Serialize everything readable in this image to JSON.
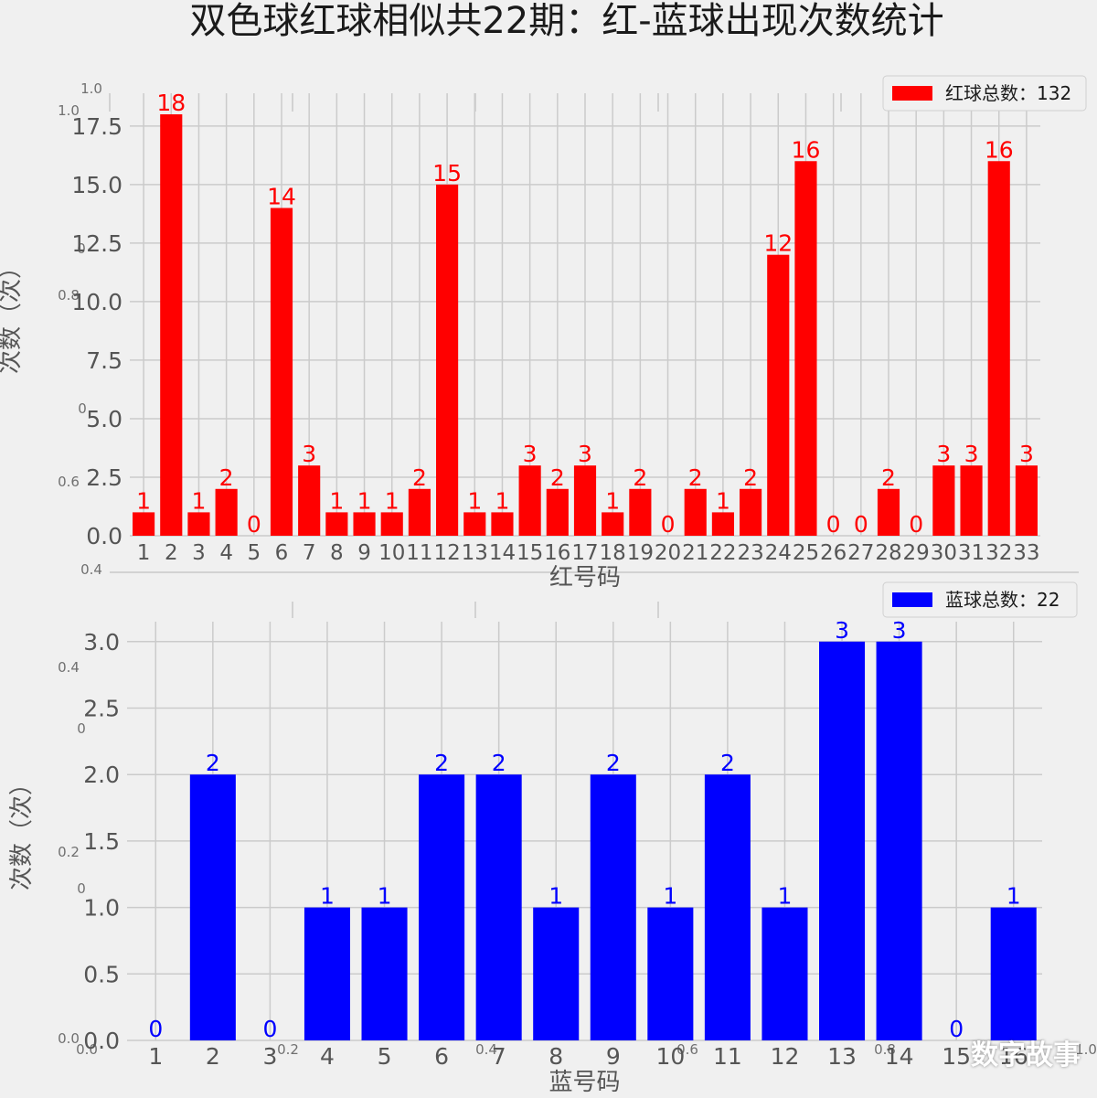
{
  "title": "双色球红球相似共22期：红-蓝球出现次数统计",
  "watermark": "数字故事",
  "colors": {
    "red": "#ff0000",
    "blue": "#0000ff",
    "grid": "#cbcbcb",
    "background": "#f0f0f0",
    "tick_text": "#555555"
  },
  "ghost_ticks": [
    "1.0",
    "1.0",
    "0",
    "0.8",
    "0",
    "0.6",
    "0.4",
    "0.4",
    "0",
    "0.2",
    "0",
    "0.0",
    "0.0",
    "0.2",
    "0.4",
    "0.6",
    "0.8",
    "1.0"
  ],
  "chart_data": [
    {
      "type": "bar",
      "title": "",
      "xlabel": "红号码",
      "ylabel": "次数（次）",
      "categories": [
        "1",
        "2",
        "3",
        "4",
        "5",
        "6",
        "7",
        "8",
        "9",
        "10",
        "11",
        "12",
        "13",
        "14",
        "15",
        "16",
        "17",
        "18",
        "19",
        "20",
        "21",
        "22",
        "23",
        "24",
        "25",
        "26",
        "27",
        "28",
        "29",
        "30",
        "31",
        "32",
        "33"
      ],
      "series": [
        {
          "name": "红球总数：132",
          "color": "#ff0000",
          "values": [
            1,
            18,
            1,
            2,
            0,
            14,
            3,
            1,
            1,
            1,
            2,
            15,
            1,
            1,
            3,
            2,
            3,
            1,
            2,
            0,
            2,
            1,
            2,
            12,
            16,
            0,
            0,
            2,
            0,
            3,
            3,
            16,
            3
          ]
        }
      ],
      "yticks": [
        "0.0",
        "2.5",
        "5.0",
        "7.5",
        "10.0",
        "12.5",
        "15.0",
        "17.5"
      ],
      "ylim": [
        0,
        18.9
      ],
      "grid": true,
      "legend": "top-right"
    },
    {
      "type": "bar",
      "title": "",
      "xlabel": "蓝号码",
      "ylabel": "次数（次）",
      "categories": [
        "1",
        "2",
        "3",
        "4",
        "5",
        "6",
        "7",
        "8",
        "9",
        "10",
        "11",
        "12",
        "13",
        "14",
        "15",
        "16"
      ],
      "series": [
        {
          "name": "蓝球总数：22",
          "color": "#0000ff",
          "values": [
            0,
            2,
            0,
            1,
            1,
            2,
            2,
            1,
            2,
            1,
            2,
            1,
            3,
            3,
            0,
            1
          ]
        }
      ],
      "yticks": [
        "0.0",
        "0.5",
        "1.0",
        "1.5",
        "2.0",
        "2.5",
        "3.0"
      ],
      "ylim": [
        0,
        3.15
      ],
      "grid": true,
      "legend": "top-right"
    }
  ]
}
